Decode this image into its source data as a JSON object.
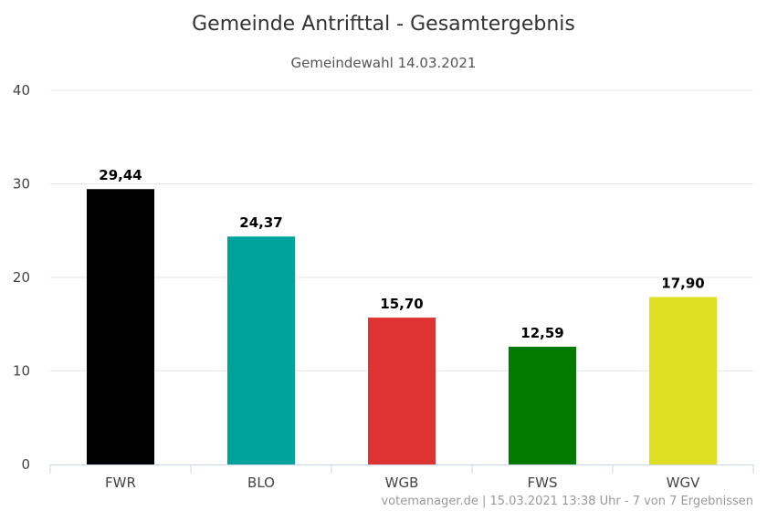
{
  "chart_data": {
    "type": "bar",
    "title": "Gemeinde Antrifttal - Gesamtergebnis",
    "subtitle": "Gemeindewahl 14.03.2021",
    "categories": [
      "FWR",
      "BLO",
      "WGB",
      "FWS",
      "WGV"
    ],
    "values": [
      29.44,
      24.37,
      15.7,
      12.59,
      17.9
    ],
    "value_labels": [
      "29,44",
      "24,37",
      "15,70",
      "12,59",
      "17,90"
    ],
    "colors": [
      "#000000",
      "#00a39b",
      "#dd3333",
      "#007a00",
      "#dede22"
    ],
    "ylim": [
      0,
      40
    ],
    "yticks": [
      0,
      10,
      20,
      30,
      40
    ],
    "xlabel": "",
    "ylabel": "",
    "grid": true
  },
  "credits": "votemanager.de | 15.03.2021 13:38 Uhr - 7 von 7 Ergebnissen"
}
